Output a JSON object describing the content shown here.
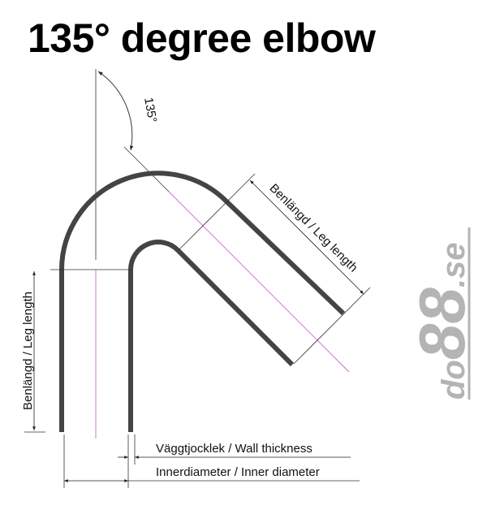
{
  "title": "135° degree elbow",
  "angle_label": "135°",
  "labels": {
    "leg_length": "Benlängd / Leg length",
    "wall_thickness": "Väggtjocklek / Wall thickness",
    "inner_diameter": "Innerdiameter / Inner diameter"
  },
  "logo": {
    "text": "do88.se",
    "prefix": "do",
    "number": "88",
    "suffix": ".se"
  },
  "colors": {
    "pipe": "#444444",
    "centerline": "#cc66cc",
    "dimension": "#333333",
    "logo": "#b4b4b4"
  }
}
